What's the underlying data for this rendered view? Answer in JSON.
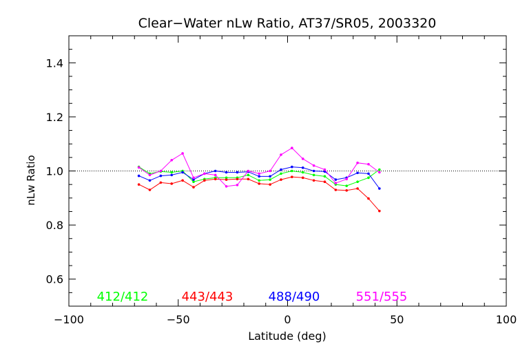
{
  "chart_data": {
    "type": "line",
    "title": "Clear−Water nLw Ratio, AT37/SR05, 2003320",
    "xlabel": "Latitude (deg)",
    "ylabel": "nLw Ratio",
    "xlim": [
      -100,
      100
    ],
    "ylim": [
      0.5,
      1.5
    ],
    "x_ticks": [
      -100,
      -50,
      0,
      50,
      100
    ],
    "y_ticks": [
      0.6,
      0.8,
      1.0,
      1.2,
      1.4
    ],
    "reference_line": 1.0,
    "grid": false,
    "series": [
      {
        "name": "412/412",
        "color": "#00ff00",
        "x": [
          -68,
          -63,
          -58,
          -53,
          -48,
          -43,
          -38,
          -33,
          -28,
          -23,
          -18,
          -13,
          -8,
          -3,
          2,
          7,
          12,
          17,
          22,
          27,
          32,
          37,
          42
        ],
        "y": [
          1.015,
          0.99,
          0.998,
          0.995,
          1.0,
          0.96,
          0.97,
          0.975,
          0.975,
          0.975,
          0.985,
          0.965,
          0.968,
          0.99,
          1.0,
          0.995,
          0.985,
          0.98,
          0.95,
          0.945,
          0.96,
          0.975,
          1.005
        ]
      },
      {
        "name": "443/443",
        "color": "#ff0000",
        "x": [
          -68,
          -63,
          -58,
          -53,
          -48,
          -43,
          -38,
          -33,
          -28,
          -23,
          -18,
          -13,
          -8,
          -3,
          2,
          7,
          12,
          17,
          22,
          27,
          32,
          37,
          42
        ],
        "y": [
          0.95,
          0.93,
          0.957,
          0.953,
          0.965,
          0.94,
          0.965,
          0.97,
          0.968,
          0.97,
          0.97,
          0.953,
          0.95,
          0.968,
          0.978,
          0.975,
          0.965,
          0.96,
          0.93,
          0.928,
          0.935,
          0.898,
          0.852
        ]
      },
      {
        "name": "488/490",
        "color": "#0000ff",
        "x": [
          -68,
          -63,
          -58,
          -53,
          -48,
          -43,
          -38,
          -33,
          -28,
          -23,
          -18,
          -13,
          -8,
          -3,
          2,
          7,
          12,
          17,
          22,
          27,
          32,
          37,
          42
        ],
        "y": [
          0.982,
          0.965,
          0.982,
          0.985,
          0.995,
          0.968,
          0.99,
          1.0,
          0.995,
          0.995,
          0.997,
          0.98,
          0.98,
          1.005,
          1.015,
          1.012,
          1.0,
          0.998,
          0.968,
          0.975,
          0.993,
          0.99,
          0.935
        ]
      },
      {
        "name": "551/555",
        "color": "#ff00ff",
        "x": [
          -68,
          -63,
          -58,
          -53,
          -48,
          -43,
          -38,
          -33,
          -28,
          -23,
          -18,
          -13,
          -8,
          -3,
          2,
          7,
          12,
          17,
          22,
          27,
          32,
          37,
          42
        ],
        "y": [
          1.013,
          0.985,
          1.0,
          1.04,
          1.065,
          0.975,
          0.99,
          0.985,
          0.943,
          0.948,
          1.0,
          0.99,
          1.0,
          1.06,
          1.085,
          1.045,
          1.02,
          1.005,
          0.955,
          0.97,
          1.03,
          1.025,
          0.995
        ]
      }
    ]
  }
}
